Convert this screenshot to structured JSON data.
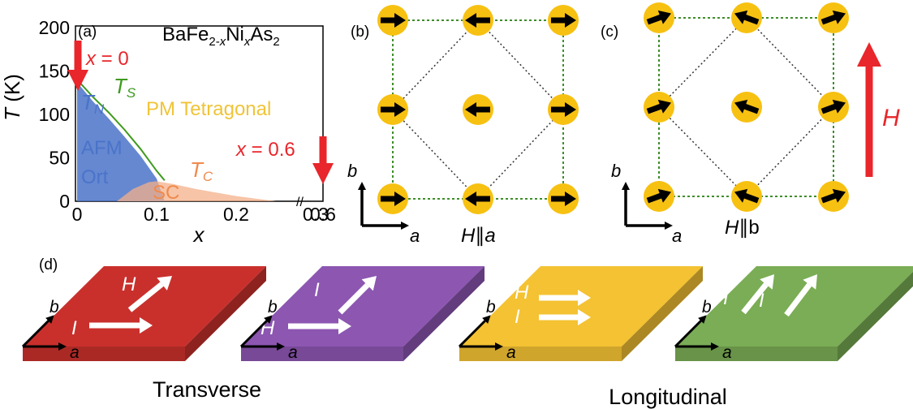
{
  "panels": {
    "a": {
      "label": "(a)",
      "compound": {
        "p1": "BaFe",
        "s1": "2-",
        "s1i": "x",
        "p2": "Ni",
        "s2": "x",
        "p3": "As",
        "s3": "2"
      },
      "ylabel_var": "T",
      "ylabel_unit": " (K)",
      "xlabel": "x",
      "x0_label": {
        "var": "x",
        "eq": " = 0"
      },
      "x06_label": {
        "var": "x",
        "eq": " = 0.6"
      },
      "ts_label": {
        "main": "T",
        "sub": "S"
      },
      "tn_label": {
        "main": "T",
        "sub": "N"
      },
      "tc_label": {
        "main": "T",
        "sub": "C"
      },
      "pm_label": "PM Tetragonal",
      "afm_label": "AFM",
      "ort_label": "Ort",
      "sc_label": "SC",
      "break_mark": "//",
      "colors": {
        "afm": "#4a73c9",
        "sc": "#f4b08a",
        "ts_line": "#3f9a1f",
        "pm_text": "#f0c438",
        "red": "#e8262b"
      }
    },
    "b": {
      "label": "(b)",
      "field_var": "H",
      "field_sym": "∥",
      "field_dir": "a",
      "axis_a": "a",
      "axis_b": "b"
    },
    "c": {
      "label": "(c)",
      "field_var": "H",
      "field_sym": "∥",
      "field_dir": "b",
      "axis_a": "a",
      "axis_b": "b",
      "big_arrow_label": "H"
    },
    "d": {
      "label": "(d)",
      "slabs": [
        {
          "name": "red",
          "color": "#c9302c",
          "labels": [
            "H",
            "I"
          ]
        },
        {
          "name": "purple",
          "color": "#8c56b1",
          "labels": [
            "I",
            "H"
          ]
        },
        {
          "name": "yellow",
          "color": "#f4c232",
          "labels": [
            "H",
            "I"
          ]
        },
        {
          "name": "green",
          "color": "#7aad55",
          "labels": [
            "H",
            "I"
          ]
        }
      ],
      "axis_a": "a",
      "axis_b": "b",
      "transverse": "Transverse",
      "longitudinal": "Longitudinal"
    }
  },
  "chart_data": {
    "type": "area",
    "title": "",
    "xlabel": "x",
    "ylabel": "T (K)",
    "xlim": [
      0,
      0.35
    ],
    "ylim": [
      0,
      200
    ],
    "xticks": [
      "0",
      "0.1",
      "0.2",
      "0.3",
      "0.6"
    ],
    "yticks": [
      "0",
      "50",
      "100",
      "150",
      "200"
    ],
    "series": [
      {
        "name": "T_N",
        "x": [
          0,
          0.02,
          0.04,
          0.06,
          0.08,
          0.1,
          0.11
        ],
        "y": [
          137,
          115,
          95,
          74,
          52,
          26,
          0
        ]
      },
      {
        "name": "T_S",
        "x": [
          0,
          0.02,
          0.04,
          0.06,
          0.08,
          0.1,
          0.11
        ],
        "y": [
          140,
          120,
          102,
          82,
          60,
          35,
          24
        ]
      },
      {
        "name": "T_C",
        "x": [
          0.05,
          0.07,
          0.09,
          0.1,
          0.12,
          0.15,
          0.2,
          0.25
        ],
        "y": [
          0,
          14,
          22,
          23,
          20,
          14,
          6,
          0
        ]
      }
    ]
  }
}
